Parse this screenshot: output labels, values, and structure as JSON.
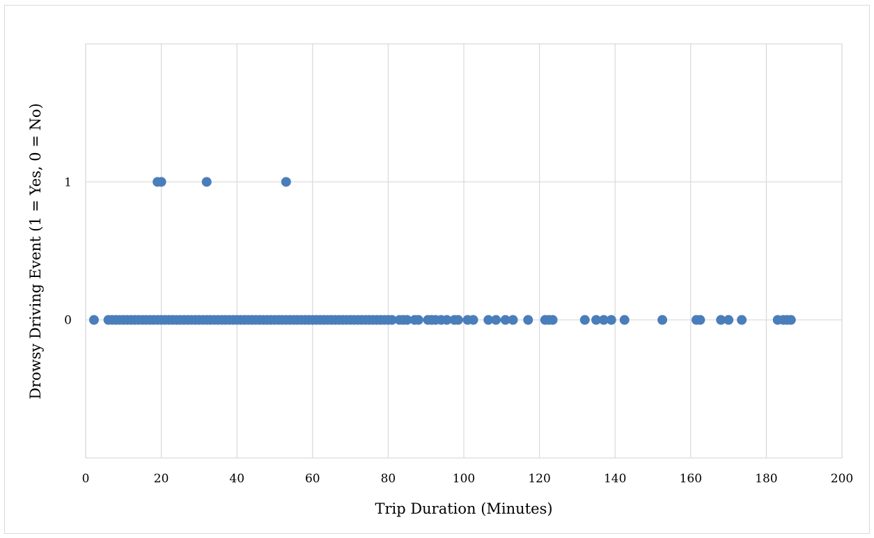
{
  "chart_data": {
    "type": "scatter",
    "title": "",
    "xlabel": "Trip Duration (Minutes)",
    "ylabel": "Drowsy Driving Event (1 = Yes, 0 = No)",
    "xlim": [
      0,
      200
    ],
    "ylim": [
      -1,
      2
    ],
    "x_ticks": [
      0,
      20,
      40,
      60,
      80,
      100,
      120,
      140,
      160,
      180,
      200
    ],
    "y_ticks": [
      0,
      1
    ],
    "x_tick_labels": [
      "0",
      "20",
      "40",
      "60",
      "80",
      "100",
      "120",
      "140",
      "160",
      "180",
      "200"
    ],
    "y_tick_labels": [
      "0",
      "1"
    ],
    "grid": true,
    "legend": "none",
    "marker_color": "#4a7ebb",
    "series": [
      {
        "points": [
          [
            19.0,
            1
          ],
          [
            20.0,
            1
          ],
          [
            32.0,
            1
          ],
          [
            53.0,
            1
          ],
          [
            2.2,
            0
          ],
          [
            6.0,
            0
          ],
          [
            7.0,
            0
          ],
          [
            8.0,
            0
          ],
          [
            9.0,
            0
          ],
          [
            10.0,
            0
          ],
          [
            11.0,
            0
          ],
          [
            12.0,
            0
          ],
          [
            13.0,
            0
          ],
          [
            14.0,
            0
          ],
          [
            15.0,
            0
          ],
          [
            16.0,
            0
          ],
          [
            17.0,
            0
          ],
          [
            18.0,
            0
          ],
          [
            19.0,
            0
          ],
          [
            20.0,
            0
          ],
          [
            21.0,
            0
          ],
          [
            22.0,
            0
          ],
          [
            23.0,
            0
          ],
          [
            24.0,
            0
          ],
          [
            25.0,
            0
          ],
          [
            26.0,
            0
          ],
          [
            27.0,
            0
          ],
          [
            28.0,
            0
          ],
          [
            29.0,
            0
          ],
          [
            30.0,
            0
          ],
          [
            31.0,
            0
          ],
          [
            32.0,
            0
          ],
          [
            33.0,
            0
          ],
          [
            34.0,
            0
          ],
          [
            35.0,
            0
          ],
          [
            36.0,
            0
          ],
          [
            37.0,
            0
          ],
          [
            38.0,
            0
          ],
          [
            39.0,
            0
          ],
          [
            40.0,
            0
          ],
          [
            41.0,
            0
          ],
          [
            42.0,
            0
          ],
          [
            43.0,
            0
          ],
          [
            44.0,
            0
          ],
          [
            45.0,
            0
          ],
          [
            46.0,
            0
          ],
          [
            47.0,
            0
          ],
          [
            48.0,
            0
          ],
          [
            49.0,
            0
          ],
          [
            50.0,
            0
          ],
          [
            51.0,
            0
          ],
          [
            52.0,
            0
          ],
          [
            53.0,
            0
          ],
          [
            54.0,
            0
          ],
          [
            55.0,
            0
          ],
          [
            56.0,
            0
          ],
          [
            57.0,
            0
          ],
          [
            58.0,
            0
          ],
          [
            59.0,
            0
          ],
          [
            60.0,
            0
          ],
          [
            61.0,
            0
          ],
          [
            62.0,
            0
          ],
          [
            63.0,
            0
          ],
          [
            64.0,
            0
          ],
          [
            65.0,
            0
          ],
          [
            66.0,
            0
          ],
          [
            67.0,
            0
          ],
          [
            68.0,
            0
          ],
          [
            69.0,
            0
          ],
          [
            70.0,
            0
          ],
          [
            71.0,
            0
          ],
          [
            72.0,
            0
          ],
          [
            73.0,
            0
          ],
          [
            74.0,
            0
          ],
          [
            75.0,
            0
          ],
          [
            76.0,
            0
          ],
          [
            77.0,
            0
          ],
          [
            78.0,
            0
          ],
          [
            79.0,
            0
          ],
          [
            80.0,
            0
          ],
          [
            81.0,
            0
          ],
          [
            83.0,
            0
          ],
          [
            84.0,
            0
          ],
          [
            85.0,
            0
          ],
          [
            87.0,
            0
          ],
          [
            88.0,
            0
          ],
          [
            90.5,
            0
          ],
          [
            91.5,
            0
          ],
          [
            92.5,
            0
          ],
          [
            94.0,
            0
          ],
          [
            95.5,
            0
          ],
          [
            97.5,
            0
          ],
          [
            98.5,
            0
          ],
          [
            101.0,
            0
          ],
          [
            102.5,
            0
          ],
          [
            106.5,
            0
          ],
          [
            108.5,
            0
          ],
          [
            111.0,
            0
          ],
          [
            113.0,
            0
          ],
          [
            117.0,
            0
          ],
          [
            121.5,
            0
          ],
          [
            122.5,
            0
          ],
          [
            123.5,
            0
          ],
          [
            132.0,
            0
          ],
          [
            135.0,
            0
          ],
          [
            137.0,
            0
          ],
          [
            139.0,
            0
          ],
          [
            142.5,
            0
          ],
          [
            152.5,
            0
          ],
          [
            161.5,
            0
          ],
          [
            162.5,
            0
          ],
          [
            168.0,
            0
          ],
          [
            170.0,
            0
          ],
          [
            173.5,
            0
          ],
          [
            183.0,
            0
          ],
          [
            184.5,
            0
          ],
          [
            185.5,
            0
          ],
          [
            186.5,
            0
          ]
        ]
      }
    ]
  }
}
